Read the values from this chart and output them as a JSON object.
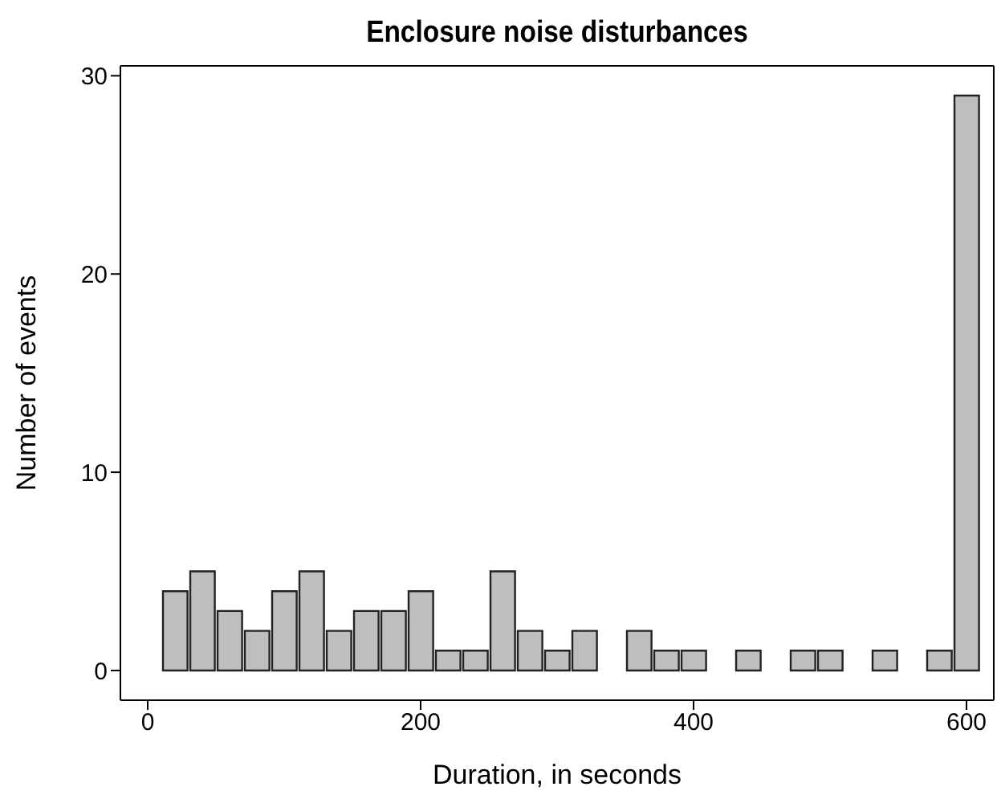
{
  "chart_data": {
    "type": "histogram",
    "title": "Enclosure noise disturbances",
    "xlabel": "Duration, in seconds",
    "ylabel": "Number of events",
    "bins": [
      10,
      30,
      50,
      70,
      90,
      110,
      130,
      150,
      170,
      190,
      210,
      230,
      250,
      270,
      290,
      310,
      330,
      350,
      370,
      390,
      410,
      430,
      450,
      470,
      490,
      510,
      530,
      550,
      570,
      590,
      610
    ],
    "values": [
      4,
      5,
      3,
      2,
      4,
      5,
      2,
      3,
      3,
      4,
      1,
      1,
      5,
      2,
      1,
      2,
      0,
      2,
      1,
      1,
      0,
      1,
      0,
      1,
      1,
      0,
      1,
      0,
      1,
      29
    ],
    "color": "#bebebe",
    "xlim": [
      -20,
      620
    ],
    "xticks": [
      0,
      200,
      400,
      600
    ],
    "ylim": [
      -1.5,
      30.5
    ],
    "yticks": [
      0,
      10,
      20,
      30
    ]
  }
}
